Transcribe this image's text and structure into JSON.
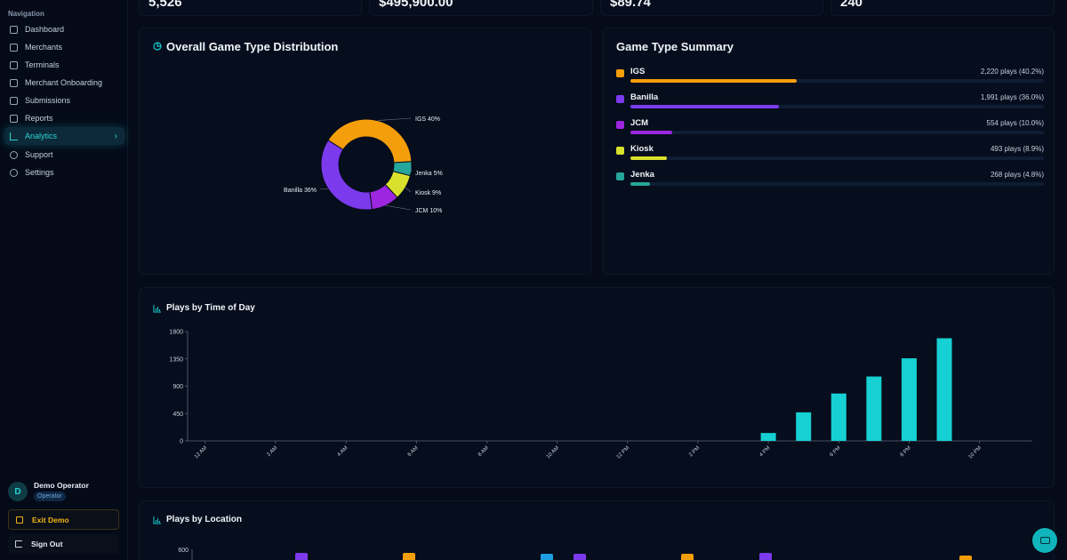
{
  "sidebar": {
    "heading": "Navigation",
    "items": [
      {
        "label": "Dashboard",
        "icon": "dashboard-icon"
      },
      {
        "label": "Merchants",
        "icon": "store-icon"
      },
      {
        "label": "Terminals",
        "icon": "terminal-icon"
      },
      {
        "label": "Merchant Onboarding",
        "icon": "onboarding-icon"
      },
      {
        "label": "Submissions",
        "icon": "clipboard-icon"
      },
      {
        "label": "Reports",
        "icon": "report-icon"
      },
      {
        "label": "Analytics",
        "icon": "bar-chart-icon",
        "active": true
      },
      {
        "label": "Support",
        "icon": "lifebuoy-icon"
      },
      {
        "label": "Settings",
        "icon": "gear-icon"
      }
    ],
    "user": {
      "initial": "D",
      "name": "Demo Operator",
      "role": "Operator"
    },
    "exit_label": "Exit Demo",
    "signout_label": "Sign Out"
  },
  "stats": {
    "values": [
      "5,526",
      "$495,900.00",
      "$89.74",
      "240"
    ]
  },
  "colors": {
    "IGS": "#f59e0b",
    "Banilla": "#7c3aed",
    "JCM": "#9d27e0",
    "Kiosk": "#d9e12c",
    "Jenka": "#26a69a",
    "accent": "#16d0d3"
  },
  "distribution": {
    "title": "Overall Game Type Distribution"
  },
  "summary": {
    "title": "Game Type Summary",
    "rows": [
      {
        "name": "IGS",
        "count_label": "2,220 plays (40.2%)",
        "percent": 40.2
      },
      {
        "name": "Banilla",
        "count_label": "1,991 plays (36.0%)",
        "percent": 36.0
      },
      {
        "name": "JCM",
        "count_label": "554 plays (10.0%)",
        "percent": 10.0
      },
      {
        "name": "Kiosk",
        "count_label": "493 plays (8.9%)",
        "percent": 8.9
      },
      {
        "name": "Jenka",
        "count_label": "268 plays (4.8%)",
        "percent": 4.8
      }
    ]
  },
  "time_of_day": {
    "title": "Plays by Time of Day"
  },
  "location": {
    "title": "Plays by Location",
    "y_top_tick": "600"
  },
  "chart_data": [
    {
      "type": "pie",
      "title": "Overall Game Type Distribution",
      "labels": [
        "IGS",
        "Jenka",
        "Kiosk",
        "JCM",
        "Banilla"
      ],
      "values": [
        40,
        5,
        9,
        10,
        36
      ],
      "display_labels": [
        "IGS 40%",
        "Jenka 5%",
        "Kiosk 9%",
        "JCM 10%",
        "Banilla 36%"
      ]
    },
    {
      "type": "bar",
      "title": "Plays by Time of Day",
      "x": [
        "12 AM",
        "1 AM",
        "2 AM",
        "3 AM",
        "4 AM",
        "5 AM",
        "6 AM",
        "7 AM",
        "8 AM",
        "9 AM",
        "10 AM",
        "11 AM",
        "12 PM",
        "1 PM",
        "2 PM",
        "3 PM",
        "4 PM",
        "5 PM",
        "6 PM",
        "7 PM",
        "8 PM",
        "9 PM",
        "10 PM",
        "11 PM"
      ],
      "tick_labels": [
        "12 AM",
        "2 AM",
        "4 AM",
        "6 AM",
        "8 AM",
        "10 AM",
        "12 PM",
        "2 PM",
        "4 PM",
        "6 PM",
        "8 PM",
        "10 PM"
      ],
      "values": [
        0,
        0,
        0,
        0,
        0,
        0,
        0,
        0,
        0,
        0,
        0,
        0,
        0,
        0,
        0,
        0,
        130,
        470,
        780,
        1060,
        1360,
        1690,
        0,
        0
      ],
      "ylim": [
        0,
        1800
      ],
      "yticks": [
        0,
        450,
        900,
        1350,
        1800
      ],
      "grid": false
    }
  ]
}
